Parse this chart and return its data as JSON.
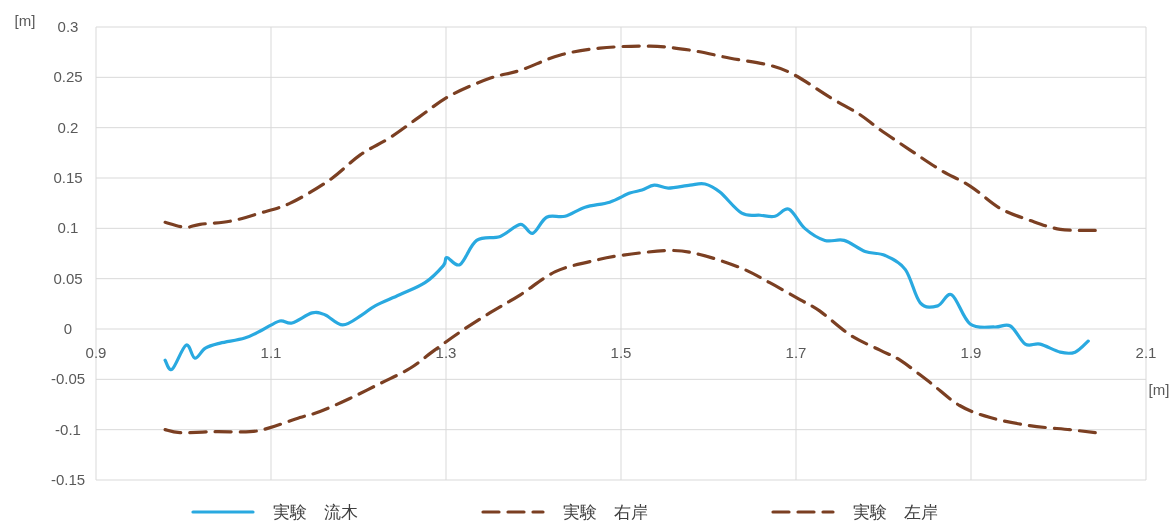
{
  "chart_data": {
    "type": "line",
    "xlabel": "[m]",
    "ylabel": "[m]",
    "xlim": [
      0.9,
      2.1
    ],
    "ylim": [
      -0.15,
      0.3
    ],
    "xticks": [
      0.9,
      1.1,
      1.3,
      1.5,
      1.7,
      1.9,
      2.1
    ],
    "yticks": [
      -0.15,
      -0.1,
      -0.05,
      0,
      0.05,
      0.1,
      0.15,
      0.2,
      0.25,
      0.3
    ],
    "grid": true,
    "legend": "bottom",
    "series": [
      {
        "name": "実験　流木",
        "color": "#29a9e0",
        "line_style": "solid",
        "x": [
          0.979,
          0.987,
          1.003,
          1.013,
          1.025,
          1.042,
          1.07,
          1.09,
          1.11,
          1.124,
          1.147,
          1.162,
          1.182,
          1.204,
          1.219,
          1.247,
          1.276,
          1.297,
          1.301,
          1.316,
          1.335,
          1.362,
          1.385,
          1.399,
          1.415,
          1.436,
          1.459,
          1.487,
          1.51,
          1.524,
          1.538,
          1.554,
          1.579,
          1.596,
          1.613,
          1.638,
          1.659,
          1.676,
          1.692,
          1.71,
          1.733,
          1.755,
          1.779,
          1.802,
          1.825,
          1.842,
          1.862,
          1.878,
          1.899,
          1.927,
          1.945,
          1.962,
          1.979,
          2.002,
          2.019,
          2.034
        ],
        "values": [
          -0.031,
          -0.04,
          -0.016,
          -0.029,
          -0.019,
          -0.014,
          -0.009,
          -0.001,
          0.008,
          0.006,
          0.016,
          0.014,
          0.004,
          0.014,
          0.023,
          0.034,
          0.046,
          0.063,
          0.071,
          0.064,
          0.088,
          0.092,
          0.104,
          0.095,
          0.111,
          0.112,
          0.121,
          0.126,
          0.135,
          0.138,
          0.143,
          0.14,
          0.143,
          0.144,
          0.136,
          0.115,
          0.113,
          0.112,
          0.119,
          0.1,
          0.088,
          0.088,
          0.077,
          0.073,
          0.059,
          0.026,
          0.023,
          0.034,
          0.005,
          0.002,
          0.003,
          -0.015,
          -0.015,
          -0.023,
          -0.023,
          -0.012
        ]
      },
      {
        "name": "実験　右岸",
        "color": "#7b3f22",
        "line_style": "dashed",
        "x": [
          0.979,
          1.002,
          1.019,
          1.053,
          1.087,
          1.122,
          1.167,
          1.202,
          1.236,
          1.27,
          1.305,
          1.35,
          1.385,
          1.43,
          1.476,
          1.533,
          1.579,
          1.625,
          1.67,
          1.699,
          1.739,
          1.773,
          1.796,
          1.83,
          1.865,
          1.899,
          1.933,
          1.967,
          2.002,
          2.042
        ],
        "values": [
          0.106,
          0.101,
          0.104,
          0.107,
          0.115,
          0.125,
          0.148,
          0.173,
          0.19,
          0.211,
          0.232,
          0.249,
          0.257,
          0.272,
          0.279,
          0.281,
          0.277,
          0.269,
          0.262,
          0.252,
          0.23,
          0.213,
          0.198,
          0.178,
          0.158,
          0.142,
          0.12,
          0.108,
          0.099,
          0.098
        ]
      },
      {
        "name": "実験　左岸",
        "color": "#7b3f22",
        "line_style": "dashed",
        "x": [
          0.979,
          0.996,
          1.036,
          1.076,
          1.099,
          1.133,
          1.156,
          1.19,
          1.225,
          1.259,
          1.287,
          1.316,
          1.35,
          1.385,
          1.425,
          1.465,
          1.499,
          1.556,
          1.59,
          1.636,
          1.67,
          1.705,
          1.727,
          1.762,
          1.796,
          1.819,
          1.853,
          1.887,
          1.922,
          1.967,
          2.013,
          2.042
        ],
        "values": [
          -0.1,
          -0.103,
          -0.102,
          -0.102,
          -0.098,
          -0.088,
          -0.082,
          -0.069,
          -0.054,
          -0.039,
          -0.021,
          -0.003,
          0.016,
          0.034,
          0.057,
          0.067,
          0.073,
          0.078,
          0.074,
          0.061,
          0.046,
          0.029,
          0.018,
          -0.006,
          -0.021,
          -0.031,
          -0.053,
          -0.076,
          -0.088,
          -0.096,
          -0.1,
          -0.103
        ]
      }
    ]
  }
}
